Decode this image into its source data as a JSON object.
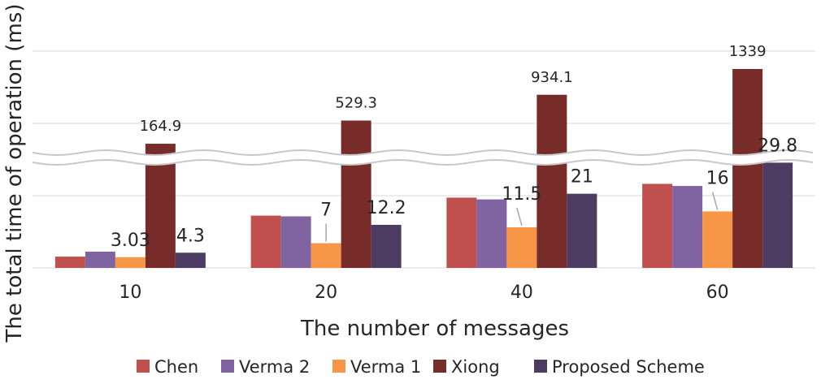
{
  "chart_data": {
    "type": "bar",
    "title": "",
    "xlabel": "The number of messages",
    "ylabel": "The total time of operation (ms)",
    "categories": [
      "10",
      "20",
      "40",
      "60"
    ],
    "axis_break": true,
    "grid": true,
    "legend_position": "bottom",
    "series": [
      {
        "name": "Chen",
        "color": "#c0504d",
        "values": [
          3.2,
          14.8,
          19.9,
          23.8
        ],
        "labels": [
          "",
          "",
          "",
          ""
        ]
      },
      {
        "name": "Verma 2",
        "color": "#8064a2",
        "values": [
          4.6,
          14.6,
          19.4,
          23.2
        ],
        "labels": [
          "",
          "",
          "",
          ""
        ]
      },
      {
        "name": "Verma 1",
        "color": "#f79646",
        "values": [
          3.03,
          7,
          11.5,
          16
        ],
        "labels": [
          "3.03",
          "7",
          "11.5",
          "16"
        ]
      },
      {
        "name": "Xiong",
        "color": "#772c2a",
        "values": [
          164.9,
          529.3,
          934.1,
          1339
        ],
        "labels": [
          "164.9",
          "529.3",
          "934.1",
          "1339"
        ]
      },
      {
        "name": "Proposed Scheme",
        "color": "#4e3b62",
        "values": [
          4.3,
          12.2,
          21,
          29.8
        ],
        "labels": [
          "4.3",
          "12.2",
          "21",
          "29.8"
        ]
      }
    ]
  }
}
